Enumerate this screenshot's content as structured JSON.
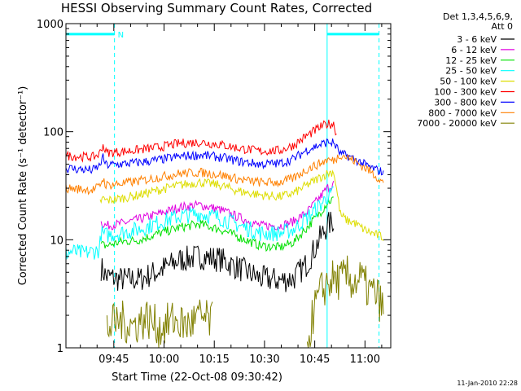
{
  "chart_data": {
    "type": "line",
    "title": "HESSI Observing Summary Count Rates, Corrected",
    "xlabel": "Start Time (22-Oct-08 09:30:42)",
    "ylabel": "Corrected Count Rate (s⁻¹ detector⁻¹)",
    "x_unit": "minutes after 09:30:42",
    "xlim": [
      0,
      97
    ],
    "ylim": [
      1,
      1000
    ],
    "y_scale": "log",
    "x_ticks": [
      {
        "x": 14.3,
        "label": "09:45"
      },
      {
        "x": 29.3,
        "label": "10:00"
      },
      {
        "x": 44.3,
        "label": "10:15"
      },
      {
        "x": 59.3,
        "label": "10:30"
      },
      {
        "x": 74.3,
        "label": "10:45"
      },
      {
        "x": 89.3,
        "label": "11:00"
      }
    ],
    "y_ticks": [
      {
        "y": 1,
        "label": "1"
      },
      {
        "y": 10,
        "label": "10"
      },
      {
        "y": 100,
        "label": "100"
      },
      {
        "y": 1000,
        "label": "1000"
      }
    ],
    "legend": {
      "placement": "top-right",
      "header": [
        "Det 1,3,4,5,6,9,",
        "Att 0"
      ]
    },
    "annotations": {
      "night_markers_x": [
        0,
        78
      ],
      "saa_markers_x": [
        14.5,
        93.5
      ],
      "night_label": "N",
      "night_bars": [
        [
          0,
          14.5
        ],
        [
          78,
          93.5
        ]
      ],
      "night_bar_y": 800
    },
    "grid": false,
    "series": [
      {
        "name": "3 - 6 keV",
        "color": "#000000",
        "x": [
          0,
          10,
          10.5,
          12,
          16,
          22,
          28,
          34,
          40,
          46,
          52,
          58,
          64,
          68,
          72,
          76,
          78,
          80,
          82
        ],
        "y": [
          null,
          null,
          5.5,
          4.6,
          4.3,
          4.3,
          5.2,
          6.5,
          7.0,
          6.6,
          5.4,
          4.4,
          4.2,
          4.4,
          6.0,
          10.5,
          13.5,
          15.0,
          null
        ]
      },
      {
        "name": "6 - 12 keV",
        "color": "#e000e0",
        "x": [
          0,
          10,
          10.5,
          12,
          16,
          22,
          28,
          34,
          40,
          46,
          52,
          58,
          64,
          68,
          72,
          76,
          78,
          80,
          82
        ],
        "y": [
          null,
          null,
          14.5,
          13.5,
          14.0,
          15.5,
          17.5,
          20.0,
          21.0,
          19.0,
          16.0,
          13.5,
          13.5,
          14.8,
          18.0,
          25.0,
          30.0,
          33.0,
          null
        ]
      },
      {
        "name": "12 - 25 keV",
        "color": "#00e000",
        "x": [
          0,
          10,
          10.5,
          12,
          16,
          22,
          28,
          34,
          40,
          46,
          52,
          58,
          64,
          68,
          72,
          76,
          78,
          80,
          82
        ],
        "y": [
          null,
          null,
          9.0,
          8.8,
          9.5,
          10.0,
          11.5,
          13.0,
          14.0,
          12.5,
          10.5,
          8.8,
          8.5,
          9.5,
          13.0,
          18.0,
          22.0,
          24.0,
          null
        ]
      },
      {
        "name": "25 - 50 keV",
        "color": "#00ffff",
        "x": [
          0,
          2,
          5,
          8,
          10,
          10.5,
          12,
          16,
          22,
          28,
          34,
          40,
          46,
          52,
          58,
          64,
          68,
          72,
          76,
          78,
          80,
          82
        ],
        "y": [
          7.5,
          7.8,
          7.5,
          7.8,
          8.0,
          11.5,
          11.0,
          11.5,
          12.5,
          14.5,
          16.5,
          17.5,
          16.0,
          13.5,
          11.5,
          11.5,
          12.5,
          16.0,
          21.0,
          25.0,
          27.0,
          null
        ]
      },
      {
        "name": "50 - 100 keV",
        "color": "#dddd00",
        "x": [
          0,
          10,
          11,
          12,
          16,
          22,
          28,
          34,
          40,
          46,
          52,
          58,
          64,
          68,
          72,
          76,
          78,
          80,
          82,
          84,
          86,
          88,
          90,
          93,
          95
        ],
        "y": [
          null,
          22,
          24,
          23,
          24,
          26,
          29,
          32,
          34,
          32,
          28,
          26,
          25,
          27,
          32,
          38,
          41,
          43,
          17.0,
          15.0,
          14.5,
          13.0,
          12.0,
          11.0,
          10.5
        ]
      },
      {
        "name": "100 - 300 keV",
        "color": "#ff0000",
        "x": [
          0,
          8,
          10,
          11,
          12,
          16,
          22,
          28,
          34,
          40,
          46,
          52,
          58,
          64,
          68,
          72,
          76,
          78,
          80,
          81
        ],
        "y": [
          60,
          58,
          62,
          76,
          64,
          65,
          68,
          72,
          78,
          80,
          76,
          70,
          66,
          67,
          75,
          92,
          110,
          118,
          118,
          90
        ]
      },
      {
        "name": "300 - 800 keV",
        "color": "#0000ff",
        "x": [
          0,
          8,
          10,
          11,
          12,
          16,
          22,
          28,
          34,
          40,
          46,
          52,
          58,
          64,
          68,
          72,
          76,
          78,
          80,
          82,
          84,
          86,
          88,
          90,
          93,
          95
        ],
        "y": [
          46,
          44,
          48,
          58,
          49,
          50,
          52,
          55,
          59,
          61,
          58,
          53,
          50,
          51,
          56,
          68,
          76,
          80,
          79,
          62,
          60,
          56,
          52,
          48,
          44,
          42
        ]
      },
      {
        "name": "800 - 7000 keV",
        "color": "#ff8000",
        "x": [
          0,
          8,
          10,
          11,
          12,
          16,
          22,
          28,
          34,
          40,
          46,
          52,
          58,
          64,
          68,
          72,
          76,
          78,
          80,
          82,
          84,
          86,
          88,
          90,
          93,
          95
        ],
        "y": [
          30,
          29,
          31,
          37,
          32,
          33,
          35,
          38,
          41,
          42,
          40,
          36,
          34,
          34,
          37,
          45,
          51,
          55,
          54,
          62,
          58,
          54,
          49,
          45,
          38,
          33
        ]
      },
      {
        "name": "7000 - 20000 keV",
        "color": "#808000",
        "x": [
          0,
          5,
          10,
          12,
          16,
          20,
          24,
          28,
          32,
          36,
          40,
          44,
          48,
          72,
          74,
          76,
          78,
          80,
          82,
          84,
          86,
          88,
          90,
          93,
          95
        ],
        "y": [
          null,
          null,
          null,
          1.5,
          1.8,
          1.6,
          1.9,
          1.5,
          1.8,
          1.6,
          1.9,
          1.7,
          null,
          1.0,
          2.2,
          3.2,
          4.0,
          4.3,
          4.2,
          4.6,
          4.0,
          4.4,
          3.5,
          3.0,
          2.2
        ]
      }
    ]
  },
  "footer": {
    "timestamp": "11-Jan-2010 22:28"
  }
}
